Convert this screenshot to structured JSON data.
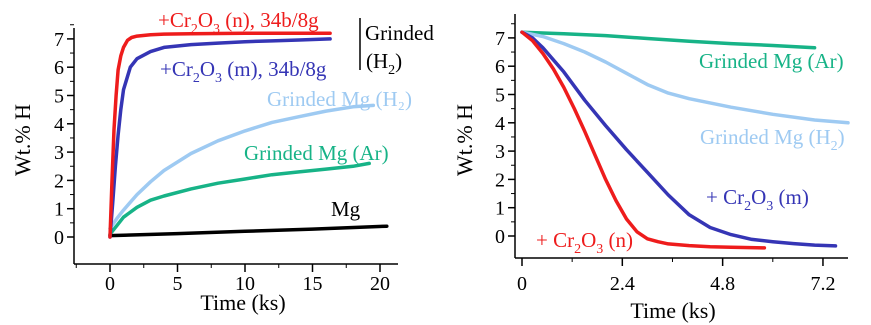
{
  "colors": {
    "red": "#ee1c1c",
    "blue": "#3535b5",
    "lightblue": "#9ecaf2",
    "green": "#17b387",
    "black": "#000000"
  },
  "chart_data": [
    {
      "type": "line",
      "title": "",
      "xlabel": "Time (ks)",
      "ylabel": "Wt.% H",
      "xlim": [
        -3,
        22
      ],
      "ylim": [
        -1,
        7.5
      ],
      "xticks": [
        0,
        5,
        10,
        15,
        20
      ],
      "yticks": [
        0,
        1,
        2,
        3,
        4,
        5,
        6,
        7
      ],
      "series": [
        {
          "name": "Mg",
          "color": "#000000",
          "x": [
            0,
            5,
            10,
            15,
            20.5
          ],
          "y": [
            0.05,
            0.12,
            0.2,
            0.28,
            0.38
          ]
        },
        {
          "name": "Grinded Mg (Ar)",
          "color": "#17b387",
          "x": [
            0,
            0.5,
            1,
            2,
            3,
            4,
            6,
            8,
            10,
            12,
            14,
            16,
            18,
            19.2
          ],
          "y": [
            0.1,
            0.4,
            0.7,
            1.05,
            1.3,
            1.45,
            1.7,
            1.9,
            2.05,
            2.2,
            2.3,
            2.4,
            2.5,
            2.6
          ]
        },
        {
          "name": "Grinded Mg (H2)",
          "color": "#9ecaf2",
          "x": [
            0,
            0.5,
            1,
            2,
            3,
            4,
            5,
            6,
            8,
            10,
            12,
            14,
            16,
            18,
            19.5
          ],
          "y": [
            0.3,
            0.65,
            0.95,
            1.5,
            1.95,
            2.35,
            2.65,
            2.95,
            3.4,
            3.75,
            4.05,
            4.25,
            4.45,
            4.6,
            4.65
          ]
        },
        {
          "name": "+Cr2O3 (m), 34b/8g",
          "color": "#3535b5",
          "x": [
            0,
            0.2,
            0.4,
            0.6,
            0.8,
            1,
            1.5,
            2,
            3,
            4,
            6,
            8,
            10,
            12,
            14,
            16.3
          ],
          "y": [
            0,
            1.2,
            2.5,
            3.6,
            4.5,
            5.2,
            6.0,
            6.3,
            6.55,
            6.7,
            6.8,
            6.85,
            6.9,
            6.93,
            6.96,
            7.0
          ]
        },
        {
          "name": "+Cr2O3 (n), 34b/8g",
          "color": "#ee1c1c",
          "x": [
            0,
            0.15,
            0.3,
            0.45,
            0.6,
            0.8,
            1,
            1.3,
            1.6,
            2,
            3,
            4,
            6,
            8,
            10,
            12,
            14,
            16.3
          ],
          "y": [
            0,
            2.0,
            3.8,
            5.0,
            5.9,
            6.4,
            6.7,
            6.95,
            7.05,
            7.1,
            7.15,
            7.17,
            7.18,
            7.19,
            7.2,
            7.2,
            7.2,
            7.2
          ]
        }
      ],
      "annotations": {
        "red_label": {
          "pre": "+Cr",
          "s1": "2",
          "mid": "O",
          "s2": "3",
          "post": " (n), 34b/8g"
        },
        "blue_label": {
          "pre": "+Cr",
          "s1": "2",
          "mid": "O",
          "s2": "3",
          "post": " (m), 34b/8g"
        },
        "lightblue_label": "Grinded Mg (H₂)",
        "green_label": "Grinded Mg (Ar)",
        "mg_label": "Mg",
        "grinded_label": "Grinded",
        "grinded_sub": {
          "pre": "(H",
          "s1": "2",
          "post": ")"
        }
      }
    },
    {
      "type": "line",
      "title": "",
      "xlabel": "Time (ks)",
      "ylabel": "Wt.% H",
      "xlim": [
        -0.1,
        7.8
      ],
      "ylim": [
        -1,
        7.5
      ],
      "xticks": [
        0,
        2.4,
        4.8,
        7.2
      ],
      "yticks": [
        0,
        1,
        2,
        3,
        4,
        5,
        6,
        7
      ],
      "series": [
        {
          "name": "Grinded Mg (Ar)",
          "color": "#17b387",
          "x": [
            0,
            1,
            2,
            3,
            4,
            5,
            6,
            7.0
          ],
          "y": [
            7.2,
            7.15,
            7.08,
            6.98,
            6.88,
            6.8,
            6.73,
            6.65
          ]
        },
        {
          "name": "Grinded Mg (H2)",
          "color": "#9ecaf2",
          "x": [
            0,
            0.5,
            1,
            1.5,
            2,
            2.5,
            3,
            3.5,
            4,
            5,
            6,
            7,
            7.8
          ],
          "y": [
            7.2,
            7.05,
            6.8,
            6.5,
            6.15,
            5.75,
            5.35,
            5.05,
            4.85,
            4.55,
            4.3,
            4.1,
            4.0
          ]
        },
        {
          "name": "+ Cr2O3 (m)",
          "color": "#3535b5",
          "x": [
            0,
            0.25,
            0.5,
            1,
            1.5,
            2,
            2.5,
            3,
            3.5,
            4,
            4.5,
            5,
            5.5,
            6,
            6.5,
            7,
            7.5
          ],
          "y": [
            7.2,
            7.0,
            6.65,
            5.8,
            4.8,
            3.9,
            3.05,
            2.25,
            1.45,
            0.75,
            0.3,
            0.05,
            -0.12,
            -0.2,
            -0.27,
            -0.32,
            -0.35
          ]
        },
        {
          "name": "+ Cr2O3 (n)",
          "color": "#ee1c1c",
          "x": [
            0,
            0.25,
            0.5,
            0.75,
            1,
            1.25,
            1.5,
            1.75,
            2,
            2.25,
            2.5,
            2.75,
            3,
            3.25,
            3.5,
            4,
            4.5,
            5,
            5.8
          ],
          "y": [
            7.2,
            6.9,
            6.45,
            5.9,
            5.25,
            4.5,
            3.7,
            2.85,
            2.0,
            1.25,
            0.6,
            0.15,
            -0.1,
            -0.2,
            -0.28,
            -0.34,
            -0.38,
            -0.4,
            -0.42
          ]
        }
      ],
      "annotations": {
        "green_label": "Grinded Mg (Ar)",
        "lightblue_label": {
          "pre": "Grinded Mg (H",
          "s1": "2",
          "post": ")"
        },
        "blue_label": {
          "pre": "+ Cr",
          "s1": "2",
          "mid": "O",
          "s2": "3",
          "post": " (m)"
        },
        "red_label": {
          "pre": "+ Cr",
          "s1": "2",
          "mid": "O",
          "s2": "3",
          "post": " (n)"
        }
      }
    }
  ]
}
